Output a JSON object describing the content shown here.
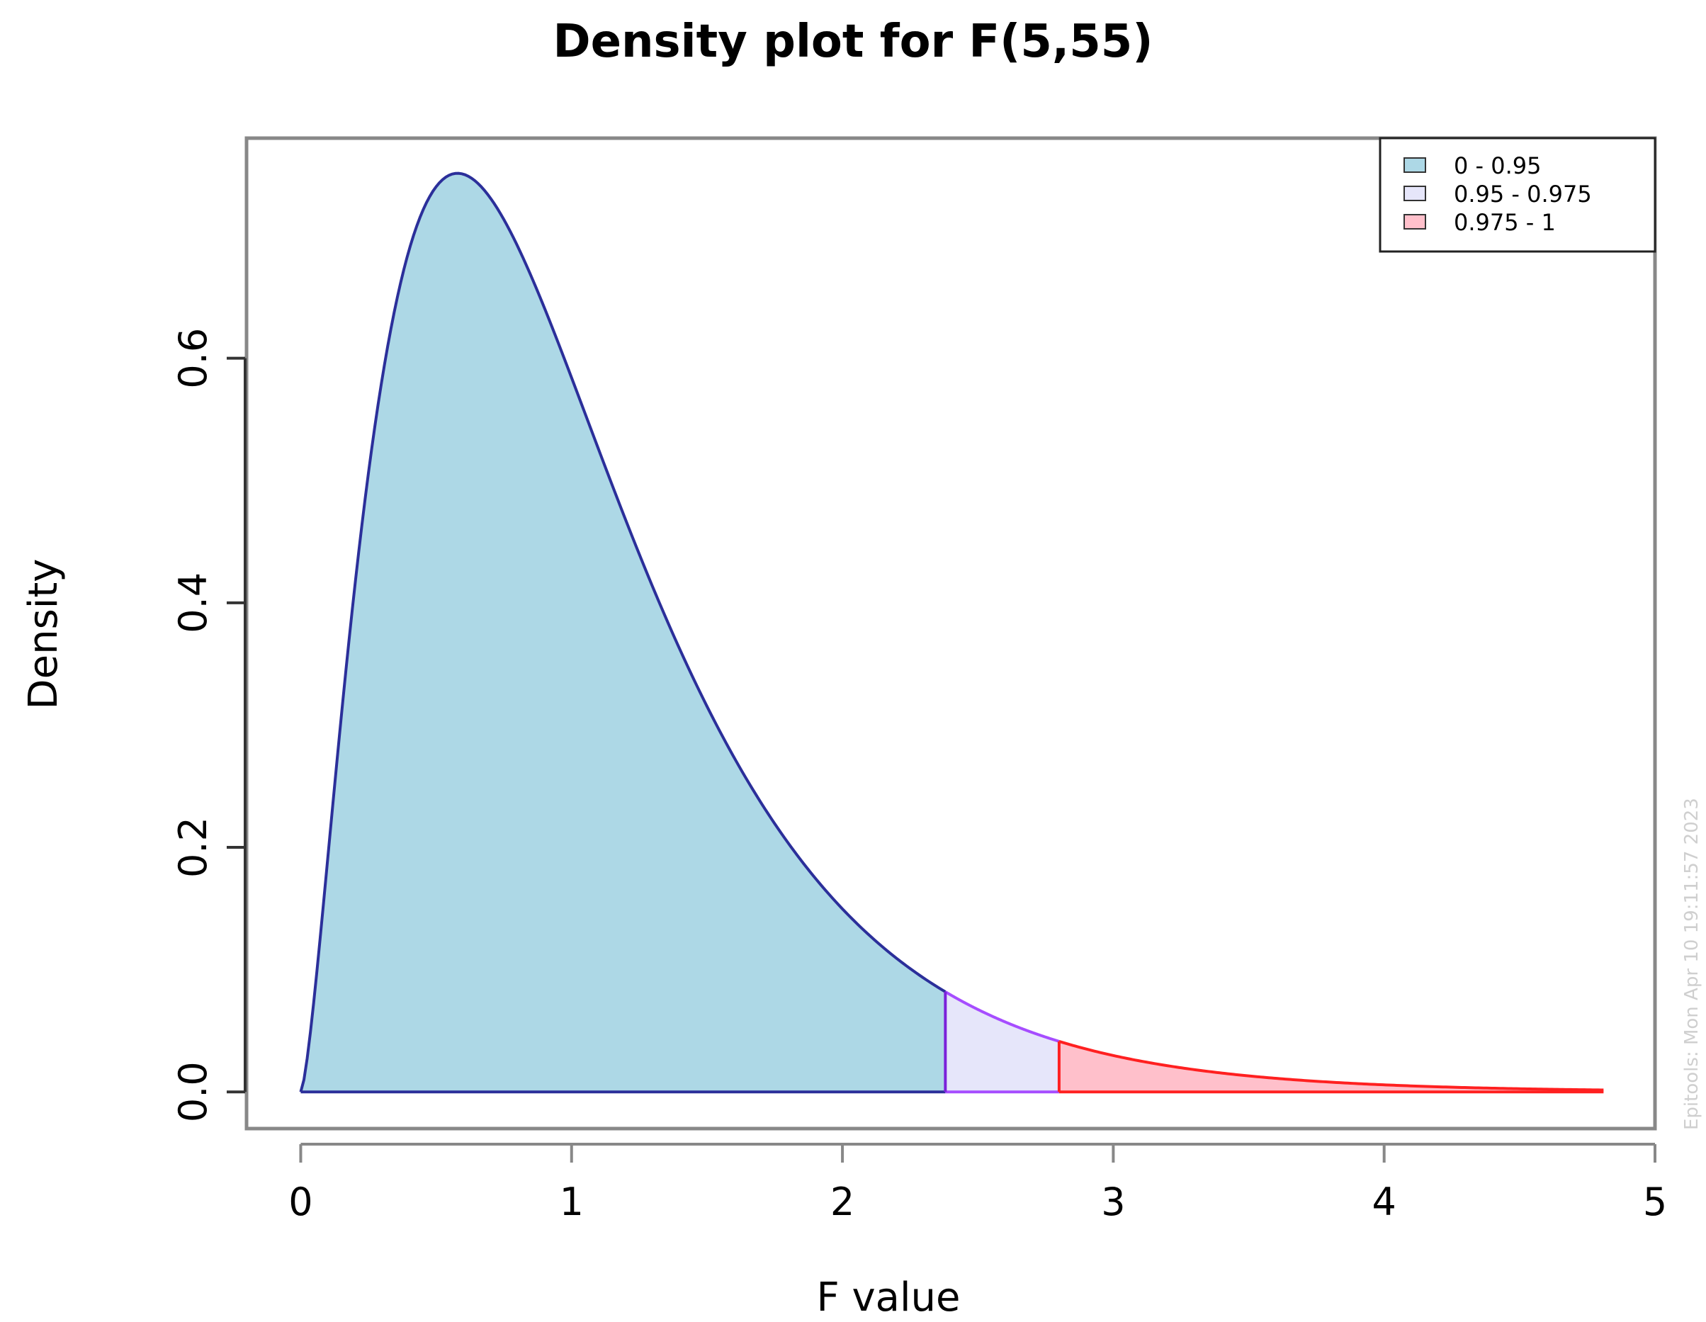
{
  "chart_data": {
    "type": "area",
    "title": "Density plot for F(5,55)",
    "xlabel": "F value",
    "ylabel": "Density",
    "distribution": {
      "family": "F",
      "df1": 5,
      "df2": 55
    },
    "xlim": [
      -0.2,
      5
    ],
    "ylim": [
      -0.03,
      0.78
    ],
    "x_ticks": [
      0,
      1,
      2,
      3,
      4,
      5
    ],
    "y_ticks": [
      0.0,
      0.2,
      0.4,
      0.6
    ],
    "x_tick_labels": [
      "0",
      "1",
      "2",
      "3",
      "4",
      "5"
    ],
    "y_tick_labels": [
      "0.0",
      "0.2",
      "0.4",
      "0.6"
    ],
    "regions": [
      {
        "label": "0 - 0.95",
        "from": 0,
        "to": 2.38,
        "fill": "#add8e6",
        "stroke": "#2b2f9a"
      },
      {
        "label": "0.95 - 0.975",
        "from": 2.38,
        "to": 2.8,
        "fill": "#e6e6fa",
        "stroke": "#a64dff"
      },
      {
        "label": "0.975 - 1",
        "from": 2.8,
        "to": 4.81,
        "fill": "#ffc0cb",
        "stroke": "#ff2020"
      }
    ],
    "series": [
      {
        "x": [
          0,
          0.1,
          0.2,
          0.3,
          0.4,
          0.5,
          0.58,
          0.7,
          0.8,
          0.9,
          1.0,
          1.2,
          1.4,
          1.6,
          1.8,
          2.0,
          2.2,
          2.38,
          2.6,
          2.8,
          3.0,
          3.5,
          4.0,
          4.5,
          4.81
        ],
        "y": [
          0.0,
          0.22,
          0.47,
          0.63,
          0.71,
          0.75,
          0.755,
          0.74,
          0.7,
          0.65,
          0.59,
          0.47,
          0.37,
          0.28,
          0.2,
          0.145,
          0.11,
          0.08,
          0.056,
          0.04,
          0.028,
          0.012,
          0.005,
          0.002,
          0.001
        ]
      }
    ],
    "legend": {
      "position": "top-right"
    },
    "grid": false
  },
  "watermark": "Epitools: Mon Apr 10 19:11:57 2023"
}
